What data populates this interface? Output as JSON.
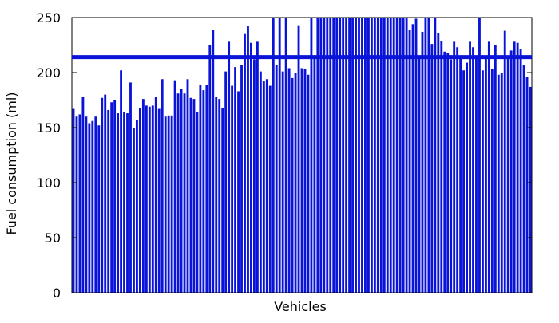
{
  "chart_data": {
    "type": "bar",
    "title": "",
    "xlabel": "Vehicles",
    "ylabel": "Fuel consumption (ml)",
    "ylim": [
      0,
      250
    ],
    "yticks": [
      "0",
      "50",
      "100",
      "150",
      "200",
      "250"
    ],
    "grid": false,
    "legend": "none",
    "bar_color": "#0a14d8",
    "reference_line": {
      "value": 214,
      "color": "#0a14d8"
    },
    "values": [
      167,
      160,
      162,
      178,
      160,
      154,
      156,
      160,
      152,
      177,
      180,
      166,
      173,
      175,
      163,
      202,
      164,
      163,
      191,
      150,
      157,
      168,
      176,
      170,
      169,
      170,
      178,
      167,
      194,
      160,
      161,
      161,
      193,
      181,
      185,
      181,
      194,
      177,
      176,
      164,
      189,
      184,
      189,
      225,
      239,
      178,
      176,
      168,
      201,
      228,
      188,
      205,
      183,
      207,
      235,
      242,
      227,
      212,
      228,
      201,
      192,
      194,
      188,
      250,
      207,
      250,
      201,
      250,
      204,
      195,
      200,
      243,
      204,
      203,
      198,
      250,
      215,
      250,
      250,
      250,
      250,
      250,
      250,
      250,
      250,
      250,
      250,
      250,
      250,
      250,
      250,
      250,
      250,
      250,
      250,
      250,
      250,
      250,
      250,
      250,
      250,
      250,
      250,
      250,
      250,
      250,
      239,
      244,
      249,
      215,
      237,
      250,
      250,
      226,
      250,
      236,
      229,
      219,
      218,
      212,
      228,
      223,
      214,
      202,
      209,
      228,
      223,
      214,
      250,
      202,
      214,
      228,
      203,
      225,
      198,
      200,
      238,
      213,
      220,
      228,
      227,
      221,
      207,
      196,
      187
    ]
  }
}
